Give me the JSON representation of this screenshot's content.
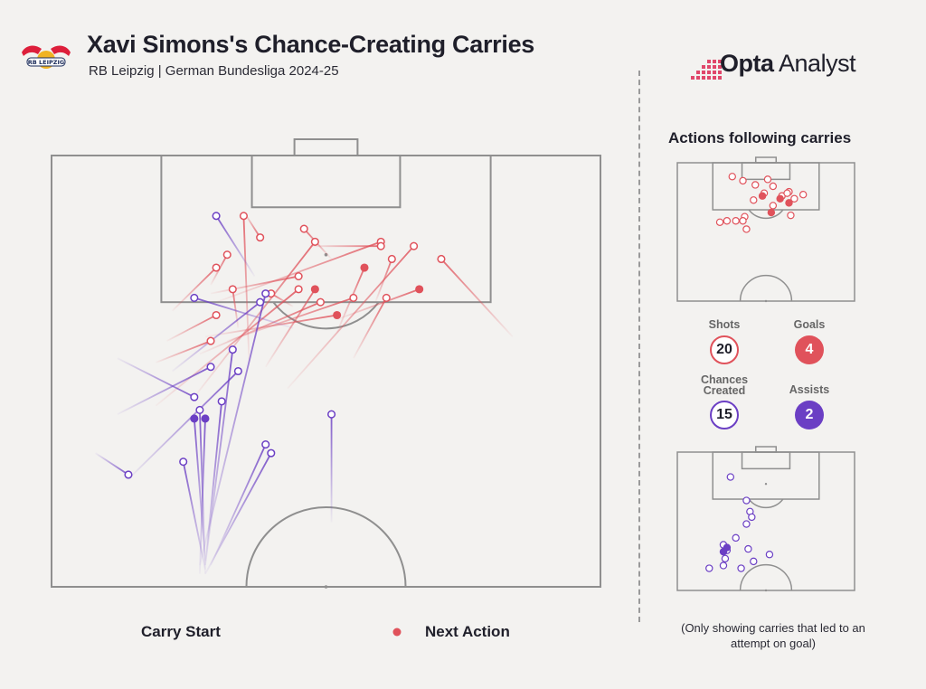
{
  "header": {
    "title": "Xavi Simons's Chance-Creating Carries",
    "subtitle": "RB Leipzig | German Bundesliga 2024-25",
    "club_logo_text": "RB LEIPZIG",
    "brand_bold": "Opta",
    "brand_light": " Analyst"
  },
  "legend": {
    "start_label": "Carry Start",
    "end_label": "Next Action"
  },
  "side_panel": {
    "title": "Actions following carries",
    "stats": [
      {
        "label": "Shots",
        "value": "20"
      },
      {
        "label": "Goals",
        "value": "4"
      },
      {
        "label": "Chances Created",
        "value": "15"
      },
      {
        "label": "Assists",
        "value": "2"
      }
    ],
    "footnote": "(Only showing carries that led to an attempt on goal)"
  },
  "colors": {
    "shot": "#e0525b",
    "chance": "#6b3fc4",
    "pitch_line": "#8f8f8f",
    "background": "#f3f2f0"
  },
  "chart_data": {
    "type": "scatter",
    "title": "Xavi Simons's Chance-Creating Carries",
    "subtitle": "RB Leipzig | German Bundesliga 2024-25",
    "coordinate_system": "pitch: x = 0..100 across width (left to right), y = 0..100 from top goal line downwards",
    "carries": [
      {
        "category": "shot",
        "outcome": "shot",
        "start": [
          26,
          56
        ],
        "end": [
          48,
          20
        ]
      },
      {
        "category": "shot",
        "outcome": "shot",
        "start": [
          36,
          48
        ],
        "end": [
          35,
          14
        ]
      },
      {
        "category": "shot",
        "outcome": "shot",
        "start": [
          29,
          30
        ],
        "end": [
          32,
          23
        ]
      },
      {
        "category": "shot",
        "outcome": "shot",
        "start": [
          19,
          58
        ],
        "end": [
          45,
          31
        ]
      },
      {
        "category": "shot",
        "outcome": "shot",
        "start": [
          34,
          40
        ],
        "end": [
          33,
          31
        ]
      },
      {
        "category": "shot",
        "outcome": "shot",
        "start": [
          43,
          54
        ],
        "end": [
          66,
          21
        ]
      },
      {
        "category": "shot",
        "outcome": "shot",
        "start": [
          32,
          43
        ],
        "end": [
          55,
          33
        ]
      },
      {
        "category": "shot",
        "outcome": "shot",
        "start": [
          30,
          34
        ],
        "end": [
          60,
          20
        ]
      },
      {
        "category": "shot",
        "outcome": "shot",
        "start": [
          27,
          46
        ],
        "end": [
          49,
          34
        ]
      },
      {
        "category": "shot",
        "outcome": "shot",
        "start": [
          19,
          48
        ],
        "end": [
          29,
          43
        ]
      },
      {
        "category": "shot",
        "outcome": "shot",
        "start": [
          55,
          47
        ],
        "end": [
          61,
          33
        ]
      },
      {
        "category": "shot",
        "outcome": "shot",
        "start": [
          51,
          24
        ],
        "end": [
          46,
          17
        ]
      },
      {
        "category": "shot",
        "outcome": "shot",
        "start": [
          35,
          13
        ],
        "end": [
          38,
          19
        ]
      },
      {
        "category": "shot",
        "outcome": "shot",
        "start": [
          47,
          21
        ],
        "end": [
          60,
          21
        ]
      },
      {
        "category": "shot",
        "outcome": "shot",
        "start": [
          59,
          34
        ],
        "end": [
          62,
          24
        ]
      },
      {
        "category": "shot",
        "outcome": "shot",
        "start": [
          84,
          42
        ],
        "end": [
          71,
          24
        ]
      },
      {
        "category": "shot",
        "outcome": "shot",
        "start": [
          44,
          35
        ],
        "end": [
          40,
          32
        ]
      },
      {
        "category": "shot",
        "outcome": "shot",
        "start": [
          22,
          36
        ],
        "end": [
          30,
          26
        ]
      },
      {
        "category": "shot",
        "outcome": "shot",
        "start": [
          29,
          32
        ],
        "end": [
          45,
          28
        ]
      },
      {
        "category": "shot",
        "outcome": "shot",
        "start": [
          21,
          43
        ],
        "end": [
          30,
          37
        ]
      },
      {
        "category": "goal",
        "outcome": "goal",
        "start": [
          39,
          49
        ],
        "end": [
          48,
          31
        ]
      },
      {
        "category": "goal",
        "outcome": "goal",
        "start": [
          52,
          41
        ],
        "end": [
          57,
          26
        ]
      },
      {
        "category": "goal",
        "outcome": "goal",
        "start": [
          52,
          38
        ],
        "end": [
          67,
          31
        ]
      },
      {
        "category": "goal",
        "outcome": "goal",
        "start": [
          28,
          42
        ],
        "end": [
          52,
          37
        ]
      },
      {
        "category": "chance",
        "outcome": "chance_created",
        "start": [
          44,
          40
        ],
        "end": [
          26,
          33
        ]
      },
      {
        "category": "chance",
        "outcome": "chance_created",
        "start": [
          37,
          28
        ],
        "end": [
          30,
          14
        ]
      },
      {
        "category": "chance",
        "outcome": "chance_created",
        "start": [
          22,
          50
        ],
        "end": [
          38,
          34
        ]
      },
      {
        "category": "chance",
        "outcome": "chance_created",
        "start": [
          12,
          47
        ],
        "end": [
          26,
          56
        ]
      },
      {
        "category": "chance",
        "outcome": "chance_created",
        "start": [
          14,
          75
        ],
        "end": [
          34,
          50
        ]
      },
      {
        "category": "chance",
        "outcome": "chance_created",
        "start": [
          8,
          69
        ],
        "end": [
          14,
          74
        ]
      },
      {
        "category": "chance",
        "outcome": "chance_created",
        "start": [
          28,
          95
        ],
        "end": [
          33,
          45
        ]
      },
      {
        "category": "chance",
        "outcome": "chance_created",
        "start": [
          27,
          95
        ],
        "end": [
          39,
          32
        ]
      },
      {
        "category": "chance",
        "outcome": "chance_created",
        "start": [
          28,
          97
        ],
        "end": [
          27,
          59
        ]
      },
      {
        "category": "chance",
        "outcome": "chance_created",
        "start": [
          28,
          96
        ],
        "end": [
          24,
          71
        ]
      },
      {
        "category": "chance",
        "outcome": "chance_created",
        "start": [
          29,
          95
        ],
        "end": [
          39,
          67
        ]
      },
      {
        "category": "chance",
        "outcome": "chance_created",
        "start": [
          28,
          97
        ],
        "end": [
          40,
          69
        ]
      },
      {
        "category": "chance",
        "outcome": "chance_created",
        "start": [
          51,
          85
        ],
        "end": [
          51,
          60
        ]
      },
      {
        "category": "chance",
        "outcome": "chance_created",
        "start": [
          28,
          95
        ],
        "end": [
          31,
          57
        ]
      },
      {
        "category": "chance",
        "outcome": "chance_created",
        "start": [
          12,
          60
        ],
        "end": [
          29,
          49
        ]
      },
      {
        "category": "assist",
        "outcome": "assist",
        "start": [
          27,
          97
        ],
        "end": [
          28,
          61
        ]
      },
      {
        "category": "assist",
        "outcome": "assist",
        "start": [
          28,
          94
        ],
        "end": [
          26,
          61
        ]
      }
    ],
    "panel_top": {
      "title": "Actions following carries",
      "shots": [
        [
          31,
          10
        ],
        [
          37,
          13
        ],
        [
          44,
          16
        ],
        [
          54,
          17
        ],
        [
          51,
          12
        ],
        [
          63,
          21
        ],
        [
          59,
          24
        ],
        [
          49,
          22
        ],
        [
          43,
          27
        ],
        [
          38,
          39
        ],
        [
          28,
          42
        ],
        [
          33,
          42
        ],
        [
          39,
          48
        ],
        [
          24,
          43
        ],
        [
          54,
          31
        ],
        [
          62,
          22
        ],
        [
          66,
          26
        ],
        [
          71,
          23
        ],
        [
          64,
          38
        ],
        [
          37,
          42
        ]
      ],
      "goals": [
        [
          48,
          24
        ],
        [
          58,
          26
        ],
        [
          63,
          29
        ],
        [
          53,
          36
        ]
      ]
    },
    "panel_bottom": {
      "title": "Actions following carries",
      "chances_created": [
        [
          30,
          18
        ],
        [
          39,
          35
        ],
        [
          41,
          43
        ],
        [
          42,
          47
        ],
        [
          39,
          52
        ],
        [
          33,
          62
        ],
        [
          26,
          67
        ],
        [
          28,
          71
        ],
        [
          27,
          77
        ],
        [
          36,
          84
        ],
        [
          43,
          79
        ],
        [
          18,
          84
        ],
        [
          26,
          82
        ],
        [
          52,
          74
        ],
        [
          40,
          70
        ]
      ],
      "assists": [
        [
          28,
          69
        ],
        [
          26,
          72
        ]
      ]
    },
    "stats": {
      "shots": 20,
      "goals": 4,
      "chances_created": 15,
      "assists": 2
    }
  }
}
